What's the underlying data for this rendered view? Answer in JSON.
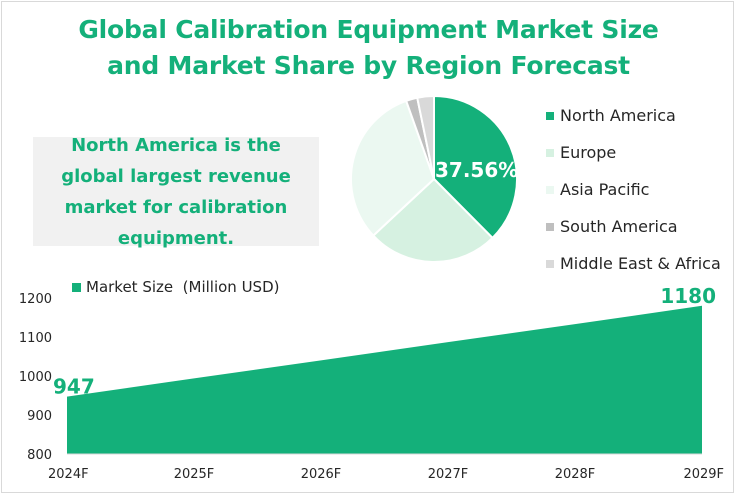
{
  "title": {
    "line1": "Global Calibration Equipment Market Size",
    "line2": "and Market Share by Region Forecast"
  },
  "callout": "North America is the global largest revenue market for calibration equipment.",
  "colors": {
    "accent": "#14b07a",
    "north_america": "#14b07a",
    "europe": "#d6f1e1",
    "asia_pacific": "#ebf8f1",
    "south_america": "#bfbfbf",
    "middle_east_africa": "#d9d9d9"
  },
  "chart_data": [
    {
      "type": "pie",
      "slices": [
        {
          "name": "North America",
          "value": 37.56,
          "label": "37.56%"
        },
        {
          "name": "Europe",
          "value": 25.5
        },
        {
          "name": "Asia Pacific",
          "value": 31.5
        },
        {
          "name": "South America",
          "value": 2.2
        },
        {
          "name": "Middle East & Africa",
          "value": 3.24
        }
      ],
      "legend_placement": "right"
    },
    {
      "type": "area",
      "series": [
        {
          "name": "Market Size  (Million USD)",
          "values": [
            947,
            994,
            1040,
            1087,
            1133,
            1180
          ]
        }
      ],
      "categories": [
        "2024F",
        "2025F",
        "2026F",
        "2027F",
        "2028F",
        "2029F"
      ],
      "data_labels": {
        "first": "947",
        "last": "1180"
      },
      "ylim": [
        800,
        1200
      ],
      "yticks": [
        "800",
        "900",
        "1000",
        "1100",
        "1200"
      ],
      "grid": false,
      "legend_placement": "top-left"
    }
  ]
}
